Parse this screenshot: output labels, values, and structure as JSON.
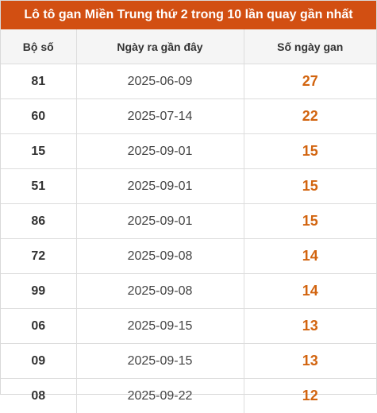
{
  "title": "Lô tô gan Miền Trung thứ 2 trong 10 lần quay gần nhất",
  "columns": [
    "Bộ số",
    "Ngày ra gần đây",
    "Số ngày gan"
  ],
  "accent_color": "#d24f12",
  "days_color": "#d2640f",
  "rows": [
    {
      "number": "81",
      "date": "2025-06-09",
      "days": "27"
    },
    {
      "number": "60",
      "date": "2025-07-14",
      "days": "22"
    },
    {
      "number": "15",
      "date": "2025-09-01",
      "days": "15"
    },
    {
      "number": "51",
      "date": "2025-09-01",
      "days": "15"
    },
    {
      "number": "86",
      "date": "2025-09-01",
      "days": "15"
    },
    {
      "number": "72",
      "date": "2025-09-08",
      "days": "14"
    },
    {
      "number": "99",
      "date": "2025-09-08",
      "days": "14"
    },
    {
      "number": "06",
      "date": "2025-09-15",
      "days": "13"
    },
    {
      "number": "09",
      "date": "2025-09-15",
      "days": "13"
    },
    {
      "number": "08",
      "date": "2025-09-22",
      "days": "12"
    }
  ]
}
